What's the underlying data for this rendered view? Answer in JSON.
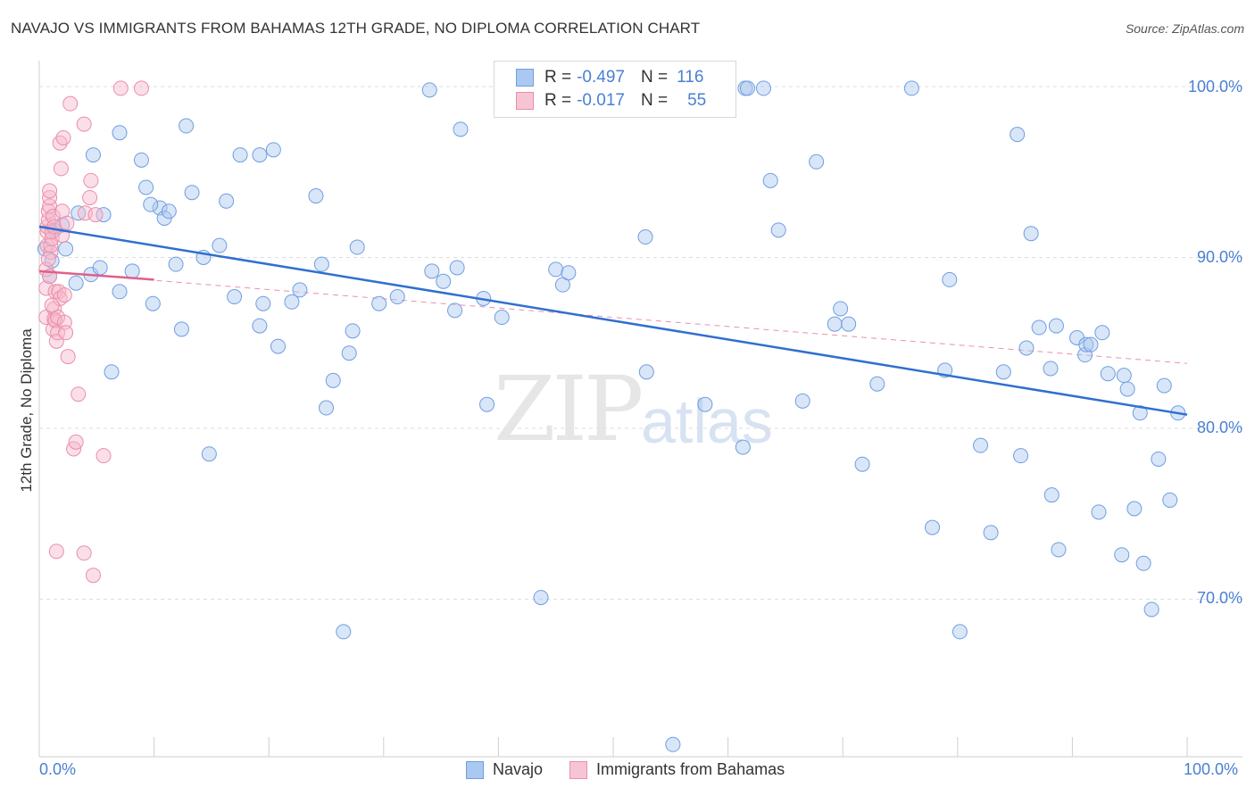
{
  "title": "NAVAJO VS IMMIGRANTS FROM BAHAMAS 12TH GRADE, NO DIPLOMA CORRELATION CHART",
  "source": "Source: ZipAtlas.com",
  "watermark": {
    "zip": "ZIP",
    "atlas": "atlas"
  },
  "legend_top": {
    "rows": [
      {
        "r_label": "R =",
        "r_value": "-0.497",
        "n_label": "N =",
        "n_value": "116"
      },
      {
        "r_label": "R =",
        "r_value": "-0.017",
        "n_label": "N =",
        "n_value": "55"
      }
    ]
  },
  "colors": {
    "navajo_fill": "#aac8f0",
    "navajo_stroke": "#6f9ee0",
    "navajo_line": "#2f6fd0",
    "bahamas_fill": "#f7b8cb",
    "bahamas_stroke": "#ea8eab",
    "bahamas_line": "#e0608a",
    "accent_text": "#4a7fd4",
    "grid": "#dddddd"
  },
  "chart_data": {
    "type": "scatter",
    "title": "NAVAJO VS IMMIGRANTS FROM BAHAMAS 12TH GRADE, NO DIPLOMA CORRELATION CHART",
    "xlabel": "",
    "ylabel": "12th Grade, No Diploma",
    "xlim": [
      0,
      100
    ],
    "ylim": [
      60.2,
      101.5
    ],
    "x_ticks": [
      "0.0%",
      "100.0%"
    ],
    "y_ticks": [
      {
        "value": 100,
        "label": "100.0%"
      },
      {
        "value": 90,
        "label": "90.0%"
      },
      {
        "value": 80,
        "label": "80.0%"
      },
      {
        "value": 70,
        "label": "70.0%"
      }
    ],
    "grid": true,
    "legend_position": "bottom",
    "series": [
      {
        "name": "Navajo",
        "r": -0.497,
        "n": 116,
        "trend": {
          "x": [
            0,
            100
          ],
          "y": [
            91.8,
            80.8
          ]
        },
        "points": [
          [
            1.1,
            89.8
          ],
          [
            1.3,
            91.6
          ],
          [
            0.9,
            88.9
          ],
          [
            2.3,
            90.5
          ],
          [
            3.2,
            88.5
          ],
          [
            3.4,
            92.6
          ],
          [
            4.5,
            89.0
          ],
          [
            4.7,
            96.0
          ],
          [
            5.3,
            89.4
          ],
          [
            5.6,
            92.5
          ],
          [
            6.3,
            83.3
          ],
          [
            7.0,
            97.3
          ],
          [
            7.0,
            88.0
          ],
          [
            8.1,
            89.2
          ],
          [
            8.9,
            95.7
          ],
          [
            9.3,
            94.1
          ],
          [
            9.9,
            87.3
          ],
          [
            10.5,
            92.9
          ],
          [
            10.9,
            92.3
          ],
          [
            11.3,
            92.7
          ],
          [
            11.9,
            89.6
          ],
          [
            12.4,
            85.8
          ],
          [
            12.8,
            97.7
          ],
          [
            13.3,
            93.8
          ],
          [
            14.3,
            90.0
          ],
          [
            14.8,
            78.5
          ],
          [
            15.7,
            90.7
          ],
          [
            16.3,
            93.3
          ],
          [
            17.0,
            87.7
          ],
          [
            17.5,
            96.0
          ],
          [
            19.2,
            96.0
          ],
          [
            19.2,
            86.0
          ],
          [
            19.5,
            87.3
          ],
          [
            20.4,
            96.3
          ],
          [
            20.8,
            84.8
          ],
          [
            22.0,
            87.4
          ],
          [
            22.7,
            88.1
          ],
          [
            24.1,
            93.6
          ],
          [
            24.6,
            89.6
          ],
          [
            25.0,
            81.2
          ],
          [
            25.6,
            82.8
          ],
          [
            27.0,
            84.4
          ],
          [
            27.3,
            85.7
          ],
          [
            27.7,
            90.6
          ],
          [
            29.6,
            87.3
          ],
          [
            31.2,
            87.7
          ],
          [
            34.0,
            99.8
          ],
          [
            34.2,
            89.2
          ],
          [
            35.2,
            88.6
          ],
          [
            36.2,
            86.9
          ],
          [
            36.4,
            89.4
          ],
          [
            36.7,
            97.5
          ],
          [
            38.7,
            87.6
          ],
          [
            39.0,
            81.4
          ],
          [
            40.3,
            86.5
          ],
          [
            43.7,
            70.1
          ],
          [
            45.0,
            89.3
          ],
          [
            45.6,
            88.4
          ],
          [
            46.1,
            89.1
          ],
          [
            52.8,
            91.2
          ],
          [
            52.9,
            83.3
          ],
          [
            54.0,
            99.9
          ],
          [
            58.0,
            81.4
          ],
          [
            61.3,
            78.9
          ],
          [
            61.5,
            99.9
          ],
          [
            63.1,
            99.9
          ],
          [
            63.7,
            94.5
          ],
          [
            64.4,
            91.6
          ],
          [
            66.5,
            81.6
          ],
          [
            67.7,
            95.6
          ],
          [
            69.3,
            86.1
          ],
          [
            69.8,
            87.0
          ],
          [
            70.5,
            86.1
          ],
          [
            71.7,
            77.9
          ],
          [
            73.0,
            82.6
          ],
          [
            76.0,
            99.9
          ],
          [
            77.8,
            74.2
          ],
          [
            78.9,
            83.4
          ],
          [
            79.3,
            88.7
          ],
          [
            80.2,
            68.1
          ],
          [
            82.0,
            79.0
          ],
          [
            82.9,
            73.9
          ],
          [
            84.0,
            83.3
          ],
          [
            85.2,
            97.2
          ],
          [
            85.5,
            78.4
          ],
          [
            86.0,
            84.7
          ],
          [
            86.4,
            91.4
          ],
          [
            87.1,
            85.9
          ],
          [
            88.1,
            83.5
          ],
          [
            88.2,
            76.1
          ],
          [
            88.6,
            86.0
          ],
          [
            88.8,
            72.9
          ],
          [
            90.4,
            85.3
          ],
          [
            91.1,
            84.3
          ],
          [
            91.2,
            84.9
          ],
          [
            91.6,
            84.9
          ],
          [
            92.3,
            75.1
          ],
          [
            92.6,
            85.6
          ],
          [
            93.1,
            83.2
          ],
          [
            94.3,
            72.6
          ],
          [
            94.5,
            83.1
          ],
          [
            94.8,
            82.3
          ],
          [
            95.4,
            75.3
          ],
          [
            95.9,
            80.9
          ],
          [
            96.2,
            72.1
          ],
          [
            96.9,
            69.4
          ],
          [
            97.5,
            78.2
          ],
          [
            98.0,
            82.5
          ],
          [
            98.5,
            75.8
          ],
          [
            99.2,
            80.9
          ],
          [
            61.7,
            99.9
          ],
          [
            55.2,
            61.5
          ],
          [
            9.7,
            93.1
          ],
          [
            26.5,
            68.1
          ],
          [
            2.0,
            91.9
          ],
          [
            0.5,
            90.5
          ]
        ]
      },
      {
        "name": "Immigrants from Bahamas",
        "r": -0.017,
        "n": 55,
        "trend": {
          "x": [
            0,
            10
          ],
          "y": [
            89.2,
            88.7
          ]
        },
        "trend_extended": {
          "x": [
            0,
            100
          ],
          "y": [
            89.2,
            83.8
          ]
        },
        "points": [
          [
            0.6,
            86.5
          ],
          [
            0.6,
            88.2
          ],
          [
            0.6,
            89.3
          ],
          [
            0.7,
            90.7
          ],
          [
            0.7,
            91.5
          ],
          [
            0.7,
            91.8
          ],
          [
            0.8,
            92.2
          ],
          [
            0.8,
            92.7
          ],
          [
            0.9,
            93.0
          ],
          [
            0.9,
            93.5
          ],
          [
            0.9,
            93.9
          ],
          [
            1.0,
            90.3
          ],
          [
            1.0,
            90.7
          ],
          [
            1.1,
            91.1
          ],
          [
            1.1,
            91.5
          ],
          [
            1.2,
            92.4
          ],
          [
            1.2,
            85.8
          ],
          [
            1.3,
            86.4
          ],
          [
            1.3,
            87.0
          ],
          [
            1.4,
            88.0
          ],
          [
            1.4,
            86.3
          ],
          [
            1.5,
            85.1
          ],
          [
            1.6,
            85.6
          ],
          [
            1.6,
            86.5
          ],
          [
            1.7,
            88.0
          ],
          [
            1.8,
            87.6
          ],
          [
            1.8,
            96.7
          ],
          [
            1.9,
            95.2
          ],
          [
            2.0,
            92.7
          ],
          [
            2.0,
            91.3
          ],
          [
            2.1,
            97.0
          ],
          [
            2.2,
            87.8
          ],
          [
            2.2,
            86.2
          ],
          [
            2.3,
            85.6
          ],
          [
            2.5,
            84.2
          ],
          [
            2.7,
            99.0
          ],
          [
            3.0,
            78.8
          ],
          [
            3.2,
            79.2
          ],
          [
            3.4,
            82.0
          ],
          [
            3.9,
            97.8
          ],
          [
            4.0,
            92.6
          ],
          [
            4.4,
            93.5
          ],
          [
            4.5,
            94.5
          ],
          [
            4.7,
            71.4
          ],
          [
            5.6,
            78.4
          ],
          [
            7.1,
            99.9
          ],
          [
            8.9,
            99.9
          ],
          [
            1.5,
            72.8
          ],
          [
            3.9,
            72.7
          ],
          [
            4.9,
            92.5
          ],
          [
            0.8,
            89.9
          ],
          [
            1.1,
            87.2
          ],
          [
            0.9,
            88.9
          ],
          [
            1.3,
            91.8
          ],
          [
            2.4,
            92.0
          ]
        ]
      }
    ]
  },
  "bottom_legend": [
    {
      "label": "Navajo"
    },
    {
      "label": "Immigrants from Bahamas"
    }
  ],
  "axis_labels": {
    "x_left": "0.0%",
    "x_right": "100.0%"
  }
}
